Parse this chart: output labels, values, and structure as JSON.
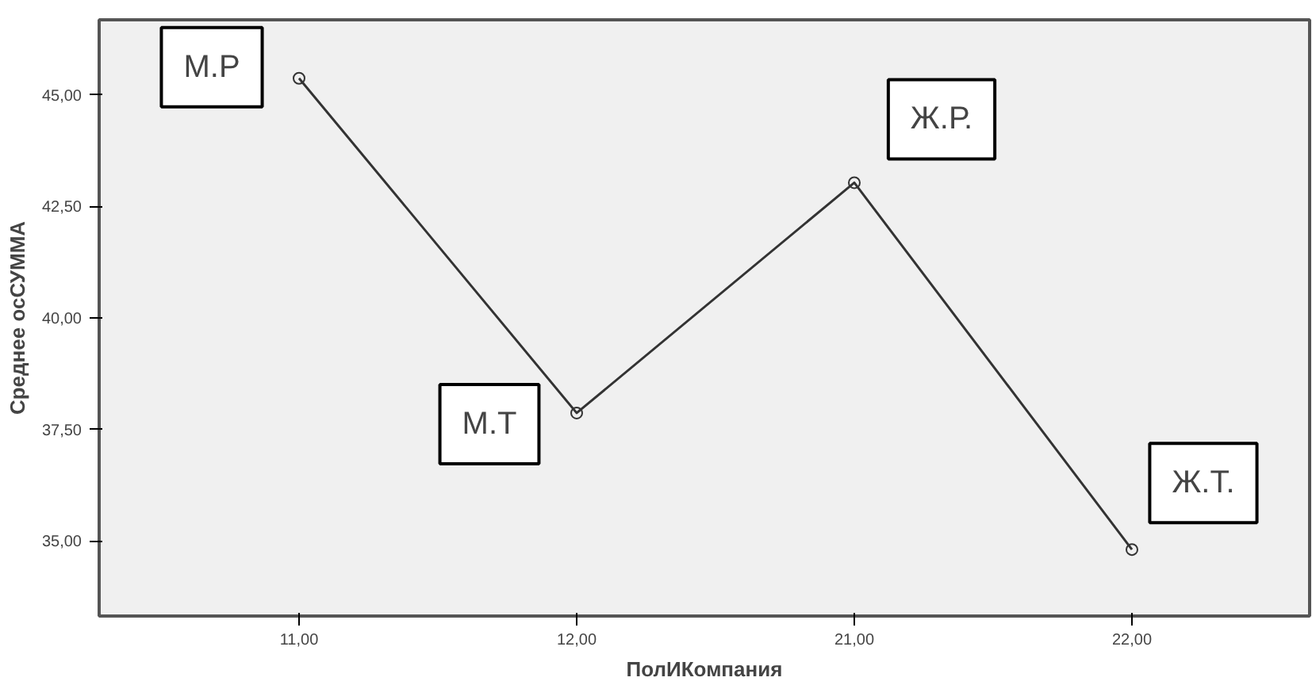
{
  "chart_data": {
    "type": "line",
    "xlabel": "ПолИКомпания",
    "ylabel": "Среднее осСУММА",
    "categories": [
      "11,00",
      "12,00",
      "21,00",
      "22,00"
    ],
    "series": [
      {
        "color": "#333333",
        "values": [
          45.37,
          37.87,
          43.03,
          34.81
        ]
      }
    ],
    "ylim": [
      33.32,
      46.68
    ],
    "yticks": [
      {
        "value": 35,
        "label": "35,00"
      },
      {
        "value": 37.5,
        "label": "37,50"
      },
      {
        "value": 40,
        "label": "40,00"
      },
      {
        "value": 42.5,
        "label": "42,50"
      },
      {
        "value": 45,
        "label": "45,00"
      }
    ],
    "annotations": [
      {
        "text": "М.Р",
        "x": "11,00",
        "y": 45.37
      },
      {
        "text": "М.Т",
        "x": "12,00",
        "y": 37.87
      },
      {
        "text": "Ж.Р.",
        "x": "21,00",
        "y": 43.03
      },
      {
        "text": "Ж.Т.",
        "x": "22,00",
        "y": 34.81
      }
    ],
    "marker": "circle",
    "grid": false
  }
}
